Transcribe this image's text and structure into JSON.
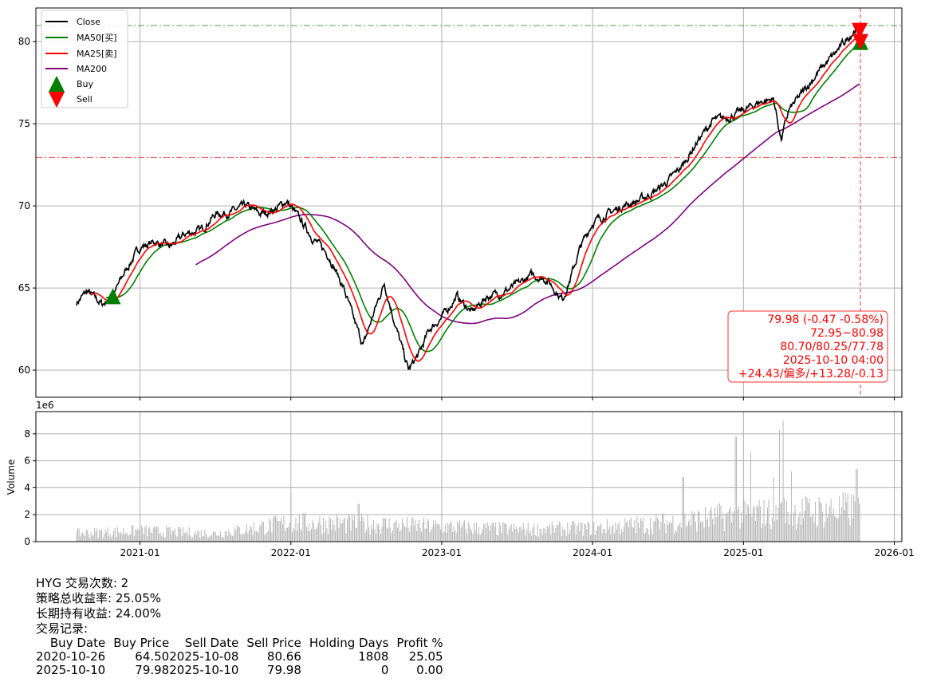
{
  "chart_data": [
    {
      "type": "line",
      "title": "",
      "xlim": [
        "2020-04-20",
        "2026-01-20"
      ],
      "ylim": [
        58.35,
        82.05
      ],
      "yticks": [
        60,
        65,
        70,
        75,
        80
      ],
      "xticks": [
        "2021-01",
        "2022-01",
        "2023-01",
        "2024-01",
        "2025-01",
        "2026-01"
      ],
      "grid": true,
      "legend_position": "top-left",
      "legend": [
        "Close",
        "MA50[买]",
        "MA25[卖]",
        "MA200",
        "Buy",
        "Sell"
      ],
      "colors": {
        "close": "#000000",
        "ma50": "#008000",
        "ma25": "#ff0000",
        "ma200": "#800080",
        "buy": "#008000",
        "sell": "#ff0000"
      },
      "close_waypoints": [
        [
          2020.58,
          64.1
        ],
        [
          2020.65,
          64.8
        ],
        [
          2020.75,
          64.0
        ],
        [
          2020.82,
          64.5
        ],
        [
          2020.9,
          66.0
        ],
        [
          2021.0,
          67.5
        ],
        [
          2021.1,
          67.8
        ],
        [
          2021.2,
          67.5
        ],
        [
          2021.3,
          68.3
        ],
        [
          2021.4,
          68.5
        ],
        [
          2021.5,
          69.5
        ],
        [
          2021.6,
          69.6
        ],
        [
          2021.7,
          70.0
        ],
        [
          2021.8,
          69.5
        ],
        [
          2021.9,
          69.8
        ],
        [
          2021.97,
          70.3
        ],
        [
          2022.05,
          69.3
        ],
        [
          2022.15,
          68.0
        ],
        [
          2022.25,
          67.0
        ],
        [
          2022.35,
          65.0
        ],
        [
          2022.42,
          63.0
        ],
        [
          2022.48,
          61.5
        ],
        [
          2022.55,
          63.5
        ],
        [
          2022.62,
          65.3
        ],
        [
          2022.7,
          62.5
        ],
        [
          2022.78,
          60.0
        ],
        [
          2022.85,
          61.0
        ],
        [
          2022.92,
          62.5
        ],
        [
          2023.0,
          63.2
        ],
        [
          2023.1,
          64.5
        ],
        [
          2023.2,
          63.5
        ],
        [
          2023.3,
          64.5
        ],
        [
          2023.4,
          64.7
        ],
        [
          2023.5,
          65.2
        ],
        [
          2023.6,
          65.8
        ],
        [
          2023.7,
          65.5
        ],
        [
          2023.8,
          64.3
        ],
        [
          2023.85,
          65.5
        ],
        [
          2023.92,
          67.5
        ],
        [
          2024.0,
          69.0
        ],
        [
          2024.1,
          69.5
        ],
        [
          2024.2,
          70.0
        ],
        [
          2024.3,
          70.3
        ],
        [
          2024.4,
          70.8
        ],
        [
          2024.5,
          71.5
        ],
        [
          2024.6,
          72.5
        ],
        [
          2024.7,
          74.0
        ],
        [
          2024.8,
          75.2
        ],
        [
          2024.9,
          75.4
        ],
        [
          2025.0,
          75.8
        ],
        [
          2025.1,
          76.3
        ],
        [
          2025.2,
          76.5
        ],
        [
          2025.25,
          74.0
        ],
        [
          2025.3,
          75.8
        ],
        [
          2025.4,
          77.0
        ],
        [
          2025.5,
          78.2
        ],
        [
          2025.6,
          79.2
        ],
        [
          2025.7,
          80.3
        ],
        [
          2025.75,
          80.9
        ],
        [
          2025.77,
          79.98
        ]
      ],
      "moving_averages": [
        25,
        50,
        200
      ],
      "hlines": [
        {
          "value": 80.98,
          "color": "#008000"
        },
        {
          "value": 72.95,
          "color": "#ff0000"
        }
      ],
      "vline_date": "2025-10-10",
      "trades": [
        {
          "type": "buy",
          "date": 2020.82,
          "price": 64.5
        },
        {
          "type": "sell",
          "date": 2025.77,
          "price": 80.66
        },
        {
          "type": "buy",
          "date": 2025.775,
          "price": 79.98
        },
        {
          "type": "sell",
          "date": 2025.775,
          "price": 79.98
        }
      ],
      "annotation": [
        "79.98 (-0.47 -0.58%)",
        "72.95~80.98",
        "80.70/80.25/77.78",
        "2025-10-10 04:00",
        "+24.43/偏多/+13.28/-0.13"
      ]
    },
    {
      "type": "bar",
      "ylabel": "Volume",
      "yscale_label": "1e6",
      "ylim": [
        0,
        9.65
      ],
      "yticks": [
        0,
        2,
        4,
        6,
        8
      ],
      "color": "#b0b0b0",
      "volume_level_millions": [
        [
          2020.55,
          0.6
        ],
        [
          2021.0,
          0.8
        ],
        [
          2021.5,
          0.6
        ],
        [
          2022.0,
          1.4
        ],
        [
          2022.5,
          1.3
        ],
        [
          2023.0,
          1.1
        ],
        [
          2023.5,
          0.9
        ],
        [
          2024.0,
          1.0
        ],
        [
          2024.5,
          1.4
        ],
        [
          2025.0,
          2.0
        ],
        [
          2025.77,
          2.4
        ]
      ],
      "volume_spikes_millions": [
        [
          2022.0,
          3.6
        ],
        [
          2022.45,
          2.8
        ],
        [
          2024.6,
          4.8
        ],
        [
          2024.95,
          7.8
        ],
        [
          2025.05,
          6.6
        ],
        [
          2025.24,
          8.3
        ],
        [
          2025.26,
          9.0
        ],
        [
          2025.2,
          4.8
        ],
        [
          2025.32,
          5.2
        ],
        [
          2025.75,
          5.4
        ]
      ]
    }
  ],
  "summary": {
    "line1": "HYG 交易次数: 2",
    "line2": "策略总收益率: 25.05%",
    "line3": "长期持有收益: 24.00%",
    "line4": "交易记录:",
    "headers": [
      "Buy Date",
      "Buy Price",
      "Sell Date",
      "Sell Price",
      "Holding Days",
      "Profit %"
    ],
    "rows": [
      [
        "2020-10-26",
        "64.50",
        "2025-10-08",
        "80.66",
        "1808",
        "25.05"
      ],
      [
        "2025-10-10",
        "79.98",
        "2025-10-10",
        "79.98",
        "0",
        "0.00"
      ]
    ]
  }
}
